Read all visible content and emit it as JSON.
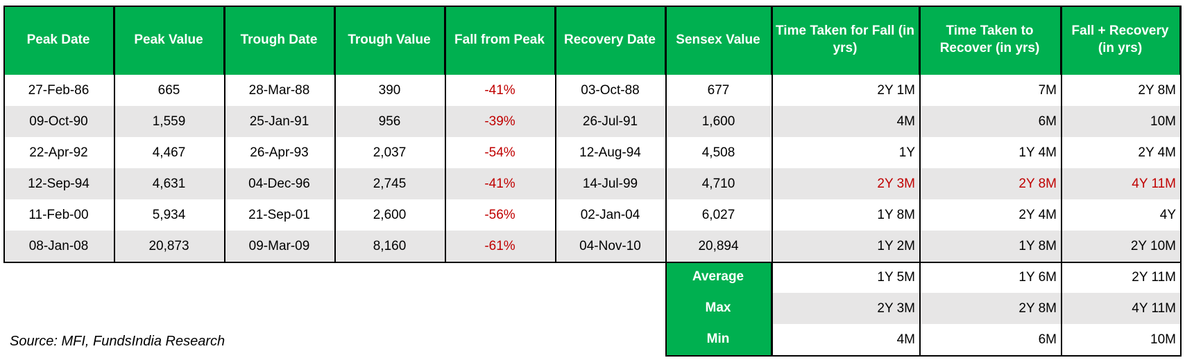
{
  "table": {
    "header": [
      "Peak Date",
      "Peak Value",
      "Trough Date",
      "Trough Value",
      "Fall from Peak",
      "Recovery Date",
      "Sensex Value",
      "Time Taken for Fall (in yrs)",
      "Time Taken to Recover (in yrs)",
      "Fall + Recovery (in yrs)"
    ],
    "rows": [
      [
        "27-Feb-86",
        "665",
        "28-Mar-88",
        "390",
        "-41%",
        "03-Oct-88",
        "677",
        "2Y 1M",
        "7M",
        "2Y 8M"
      ],
      [
        "09-Oct-90",
        "1,559",
        "25-Jan-91",
        "956",
        "-39%",
        "26-Jul-91",
        "1,600",
        "4M",
        "6M",
        "10M"
      ],
      [
        "22-Apr-92",
        "4,467",
        "26-Apr-93",
        "2,037",
        "-54%",
        "12-Aug-94",
        "4,508",
        "1Y",
        "1Y 4M",
        "2Y 4M"
      ],
      [
        "12-Sep-94",
        "4,631",
        "04-Dec-96",
        "2,745",
        "-41%",
        "14-Jul-99",
        "4,710",
        "2Y 3M",
        "2Y 8M",
        "4Y 11M"
      ],
      [
        "11-Feb-00",
        "5,934",
        "21-Sep-01",
        "2,600",
        "-56%",
        "02-Jan-04",
        "6,027",
        "1Y 8M",
        "2Y 4M",
        "4Y"
      ],
      [
        "08-Jan-08",
        "20,873",
        "09-Mar-09",
        "8,160",
        "-61%",
        "04-Nov-10",
        "20,894",
        "1Y 2M",
        "1Y 8M",
        "2Y 10M"
      ]
    ],
    "summary": [
      {
        "label": "Average",
        "values": [
          "1Y 5M",
          "1Y 6M",
          "2Y 11M"
        ]
      },
      {
        "label": "Max",
        "values": [
          "2Y 3M",
          "2Y 8M",
          "4Y 11M"
        ]
      },
      {
        "label": "Min",
        "values": [
          "4M",
          "6M",
          "10M"
        ]
      }
    ],
    "highlight_row": 3
  },
  "source": "Source: MFI, FundsIndia Research"
}
